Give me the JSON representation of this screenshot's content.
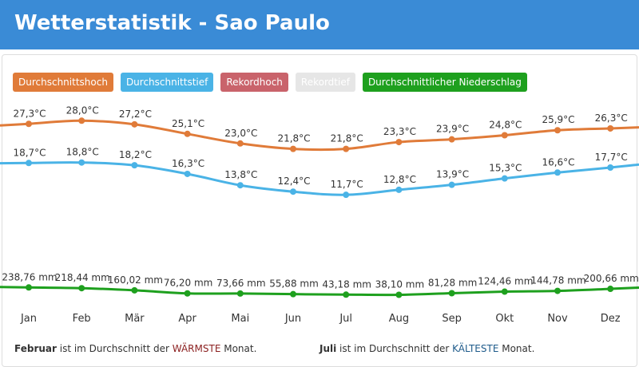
{
  "header": {
    "title": "Wetterstatistik - Sao Paulo"
  },
  "legend": [
    {
      "label": "Durchschnittshoch",
      "color": "#e07b39"
    },
    {
      "label": "Durchschnittstief",
      "color": "#4ab3e6"
    },
    {
      "label": "Rekordhoch",
      "color": "#c9636b"
    },
    {
      "label": "Rekordtief",
      "color": "#e6e6e6"
    },
    {
      "label": "Durchschnittlicher Niederschlag",
      "color": "#1ea01e"
    }
  ],
  "chart_data": {
    "type": "line",
    "categories": [
      "Jan",
      "Feb",
      "Mär",
      "Apr",
      "Mai",
      "Jun",
      "Jul",
      "Aug",
      "Sep",
      "Okt",
      "Nov",
      "Dez"
    ],
    "series": [
      {
        "name": "Durchschnittshoch",
        "color": "#e07b39",
        "values": [
          27.3,
          28.0,
          27.2,
          25.1,
          23.0,
          21.8,
          21.8,
          23.3,
          23.9,
          24.8,
          25.9,
          26.3
        ],
        "labels": [
          "27,3°C",
          "28,0°C",
          "27,2°C",
          "25,1°C",
          "23,0°C",
          "21,8°C",
          "21,8°C",
          "23,3°C",
          "23,9°C",
          "24,8°C",
          "25,9°C",
          "26,3°C"
        ]
      },
      {
        "name": "Durchschnittstief",
        "color": "#4ab3e6",
        "values": [
          18.7,
          18.8,
          18.2,
          16.3,
          13.8,
          12.4,
          11.7,
          12.8,
          13.9,
          15.3,
          16.6,
          17.7
        ],
        "labels": [
          "18,7°C",
          "18,8°C",
          "18,2°C",
          "16,3°C",
          "13,8°C",
          "12,4°C",
          "11,7°C",
          "12,8°C",
          "13,9°C",
          "15,3°C",
          "16,6°C",
          "17,7°C"
        ]
      },
      {
        "name": "Durchschnittlicher Niederschlag",
        "color": "#1ea01e",
        "values": [
          238.76,
          218.44,
          160.02,
          76.2,
          73.66,
          55.88,
          43.18,
          38.1,
          81.28,
          124.46,
          144.78,
          200.66
        ],
        "labels": [
          "238,76 mm",
          "218,44 mm",
          "160,02 mm",
          "76,20 mm",
          "73,66 mm",
          "55,88 mm",
          "43,18 mm",
          "38,10 mm",
          "81,28 mm",
          "124,46 mm",
          "144,78 mm",
          "200,66 mm"
        ]
      }
    ],
    "hidden_series": [
      "Rekordhoch",
      "Rekordtief"
    ],
    "grid": false,
    "legend_position": "top-left"
  },
  "footer": {
    "warmest_month": "Februar",
    "warm_middle": " ist im Durchschnitt der ",
    "warm_word": "WÄRMSTE",
    "warm_end": " Monat.",
    "coldest_month": "Juli",
    "cold_middle": " ist im Durchschnitt der ",
    "cold_word": "KÄLTESTE",
    "cold_end": " Monat."
  }
}
